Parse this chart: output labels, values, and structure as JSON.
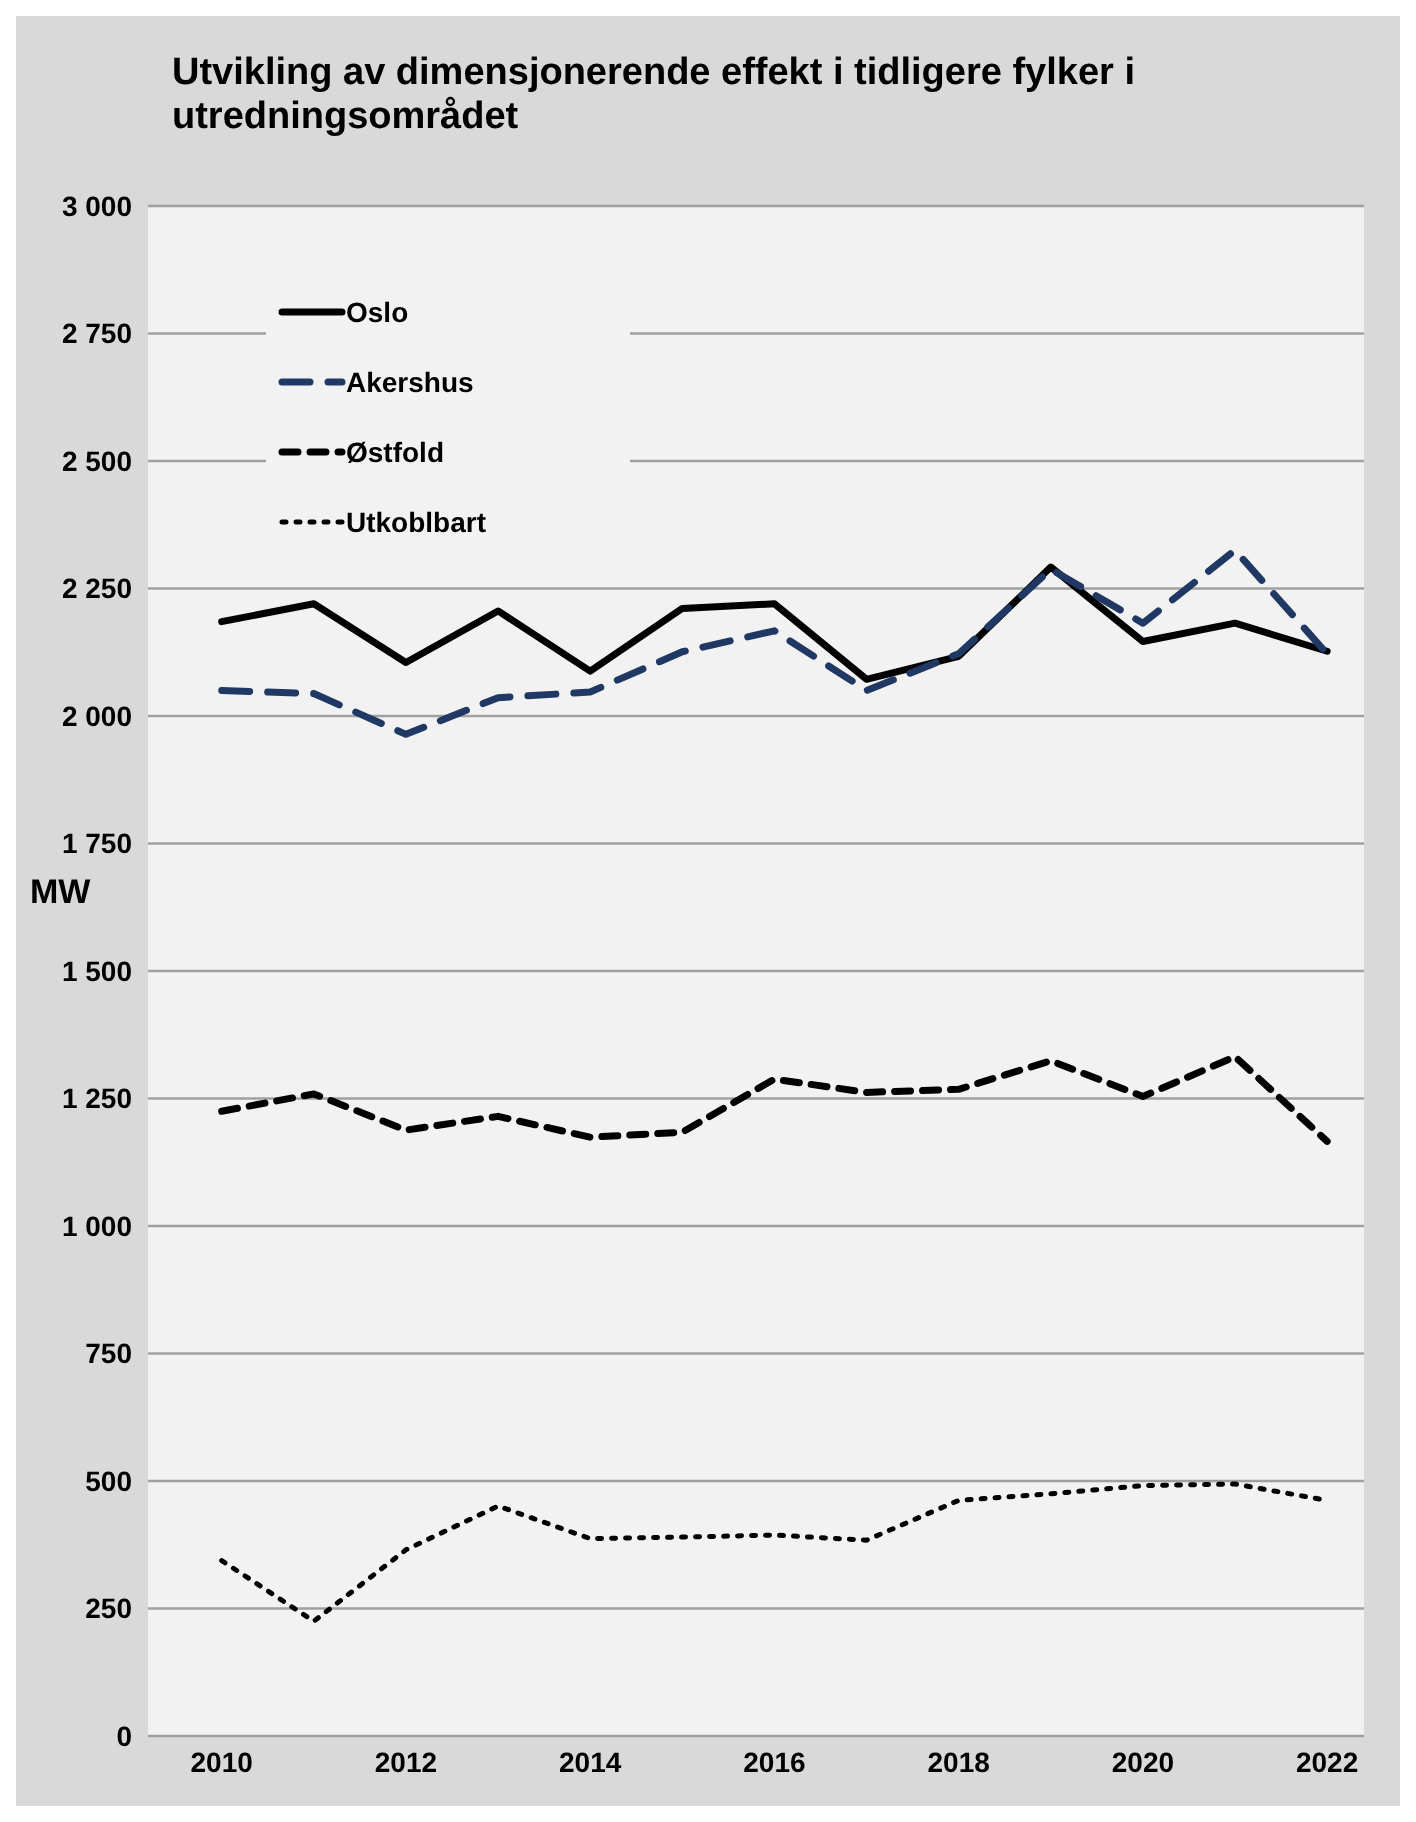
{
  "chart_data": {
    "type": "line",
    "title": "Utvikling av dimensjonerende effekt i tidligere fylker i utredningsområdet",
    "ylabel": "MW",
    "x": [
      2010,
      2011,
      2012,
      2013,
      2014,
      2015,
      2016,
      2017,
      2018,
      2019,
      2020,
      2021,
      2022
    ],
    "xlim": [
      2009.2,
      2022.4
    ],
    "xticks": [
      2010,
      2012,
      2014,
      2016,
      2018,
      2020,
      2022
    ],
    "ylim": [
      0,
      3000
    ],
    "yticks": [
      0,
      250,
      500,
      750,
      {
        "value": 1000,
        "label": "1 000"
      },
      {
        "value": 1250,
        "label": "1 250"
      },
      {
        "value": 1500,
        "label": "1 500"
      },
      {
        "value": 1750,
        "label": "1 750"
      },
      {
        "value": 2000,
        "label": "2 000"
      },
      {
        "value": 2250,
        "label": "2 250"
      },
      {
        "value": 2500,
        "label": "2 500"
      },
      {
        "value": 2750,
        "label": "2 750"
      },
      {
        "value": 3000,
        "label": "3 000"
      }
    ],
    "grid": "y",
    "legend": "top left",
    "marker": "none",
    "series": [
      {
        "name": "Oslo",
        "color": "#000000",
        "line_style": "solid",
        "values": [
          2185,
          2220,
          2105,
          2206,
          2088,
          2211,
          2220,
          2072,
          2117,
          2292,
          2146,
          2182,
          2127
        ]
      },
      {
        "name": "Akershus",
        "color": "#1f3864",
        "line_style": "dashed",
        "values": [
          2050,
          2044,
          1964,
          2036,
          2047,
          2126,
          2167,
          2050,
          2122,
          2288,
          2182,
          2325,
          2122
        ]
      },
      {
        "name": "Østfold",
        "color": "#000000",
        "line_style": "dashed",
        "values": [
          1225,
          1259,
          1188,
          1215,
          1174,
          1184,
          1288,
          1262,
          1268,
          1324,
          1254,
          1332,
          1166
        ]
      },
      {
        "name": "Utkoblbart",
        "color": "#000000",
        "line_style": "dotted",
        "values": [
          344,
          225,
          365,
          451,
          387,
          390,
          394,
          384,
          462,
          475,
          491,
          494,
          462
        ]
      }
    ]
  }
}
